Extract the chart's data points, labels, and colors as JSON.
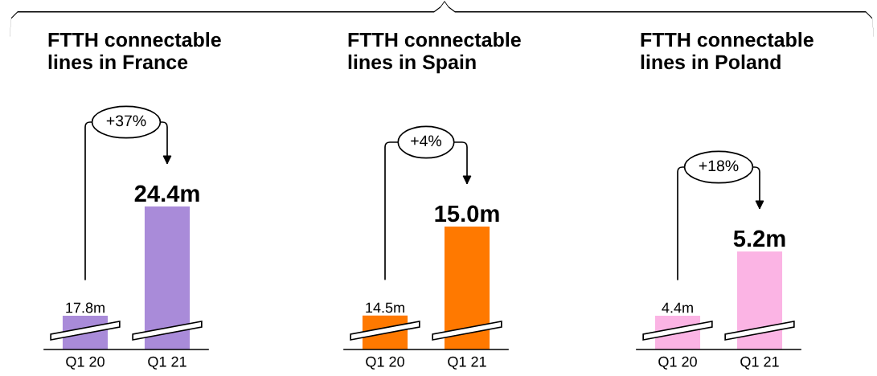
{
  "chart_data": [
    {
      "type": "bar",
      "title": "FTTH connectable\nlines in France",
      "categories": [
        "Q1 20",
        "Q1 21"
      ],
      "values": [
        17.8,
        24.4
      ],
      "colors": [
        "#a98bd9",
        "#a98bd9"
      ],
      "value_labels": [
        "17.8m",
        "24.4m"
      ],
      "annotations": [
        "+37%"
      ],
      "ylim": [
        15.76,
        24.4
      ],
      "tick_labels": "x"
    },
    {
      "type": "bar",
      "title": "FTTH connectable\nlines in Spain",
      "categories": [
        "Q1 20",
        "Q1 21"
      ],
      "values": [
        14.5,
        15.0
      ],
      "colors": [
        "#ff7900",
        "#ff7900"
      ],
      "value_labels": [
        "14.5m",
        "15.0m"
      ],
      "annotations": [
        "+4%"
      ],
      "ylim": [
        14.31,
        15.0
      ],
      "tick_labels": "x"
    },
    {
      "type": "bar",
      "title": "FTTH connectable\nlines in Poland",
      "categories": [
        "Q1 20",
        "Q1 21"
      ],
      "values": [
        4.4,
        5.2
      ],
      "colors": [
        "#fbb4e4",
        "#fbb4e4"
      ],
      "value_labels": [
        "4.4m",
        "5.2m"
      ],
      "annotations": [
        "+18%"
      ],
      "ylim": [
        3.98,
        5.2
      ],
      "tick_labels": "x"
    }
  ]
}
